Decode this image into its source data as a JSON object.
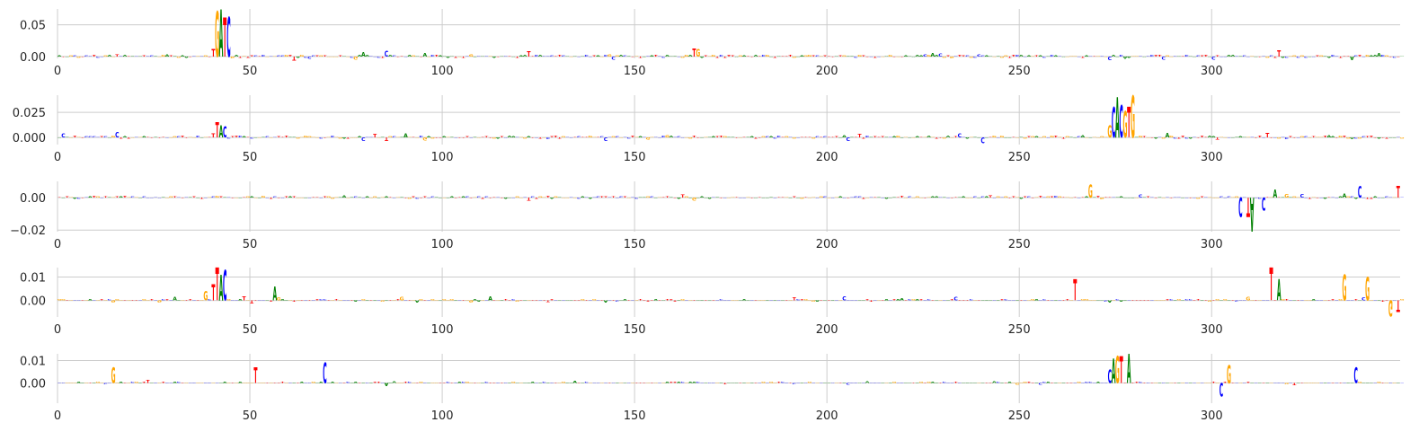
{
  "figure": {
    "colors": {
      "A": "#008000",
      "C": "#0000ff",
      "G": "#ffa500",
      "T": "#ff0000",
      "grid": "#cccccc",
      "tick_text": "#262626"
    }
  },
  "chart_data": [
    {
      "type": "sequence-logo",
      "xlim": [
        0,
        349
      ],
      "ylim": [
        -0.003,
        0.075
      ],
      "x_ticks": [
        0,
        50,
        100,
        150,
        200,
        250,
        300
      ],
      "x_tick_labels": [
        "0",
        "50",
        "100",
        "150",
        "200",
        "250",
        "300"
      ],
      "y_ticks": [
        0.0,
        0.05
      ],
      "y_tick_labels": [
        "0.00",
        "0.05"
      ],
      "grid": true,
      "peaks": [
        {
          "x": 40,
          "letter": "T",
          "value": 0.012
        },
        {
          "x": 41,
          "letter": "G",
          "value": 0.072
        },
        {
          "x": 42,
          "letter": "A",
          "value": 0.075
        },
        {
          "x": 43,
          "letter": "T",
          "value": 0.062
        },
        {
          "x": 44,
          "letter": "C",
          "value": 0.063
        },
        {
          "x": 165,
          "letter": "T",
          "value": 0.013
        },
        {
          "x": 166,
          "letter": "G",
          "value": 0.012
        }
      ]
    },
    {
      "type": "sequence-logo",
      "xlim": [
        0,
        349
      ],
      "ylim": [
        -0.007,
        0.042
      ],
      "x_ticks": [
        0,
        50,
        100,
        150,
        200,
        250,
        300
      ],
      "x_tick_labels": [
        "0",
        "50",
        "100",
        "150",
        "200",
        "250",
        "300"
      ],
      "y_ticks": [
        0.0,
        0.025
      ],
      "y_tick_labels": [
        "0.000",
        "0.025"
      ],
      "grid": true,
      "peaks": [
        {
          "x": 40,
          "letter": "T",
          "value": 0.004
        },
        {
          "x": 41,
          "letter": "T",
          "value": 0.015
        },
        {
          "x": 42,
          "letter": "A",
          "value": 0.012
        },
        {
          "x": 43,
          "letter": "C",
          "value": 0.011
        },
        {
          "x": 273,
          "letter": "G",
          "value": 0.012
        },
        {
          "x": 274,
          "letter": "C",
          "value": 0.03
        },
        {
          "x": 275,
          "letter": "A",
          "value": 0.04
        },
        {
          "x": 276,
          "letter": "C",
          "value": 0.032
        },
        {
          "x": 277,
          "letter": "G",
          "value": 0.026
        },
        {
          "x": 278,
          "letter": "T",
          "value": 0.03
        },
        {
          "x": 279,
          "letter": "G",
          "value": 0.042
        },
        {
          "x": 240,
          "letter": "C",
          "value": -0.006
        }
      ]
    },
    {
      "type": "sequence-logo",
      "xlim": [
        0,
        349
      ],
      "ylim": [
        -0.021,
        0.01
      ],
      "x_ticks": [
        0,
        50,
        100,
        150,
        200,
        250,
        300
      ],
      "x_tick_labels": [
        "0",
        "50",
        "100",
        "150",
        "200",
        "250",
        "300"
      ],
      "y_ticks": [
        -0.02,
        0.0
      ],
      "y_tick_labels": [
        "−0.02",
        "0.00"
      ],
      "grid": true,
      "peaks": [
        {
          "x": 268,
          "letter": "G",
          "value": 0.008
        },
        {
          "x": 307,
          "letter": "C",
          "value": -0.012
        },
        {
          "x": 309,
          "letter": "T",
          "value": -0.012
        },
        {
          "x": 310,
          "letter": "A",
          "value": -0.021
        },
        {
          "x": 313,
          "letter": "C",
          "value": -0.008
        },
        {
          "x": 316,
          "letter": "A",
          "value": 0.005
        },
        {
          "x": 338,
          "letter": "C",
          "value": 0.007
        },
        {
          "x": 348,
          "letter": "T",
          "value": 0.007
        }
      ]
    },
    {
      "type": "sequence-logo",
      "xlim": [
        0,
        349
      ],
      "ylim": [
        -0.007,
        0.014
      ],
      "x_ticks": [
        0,
        50,
        100,
        150,
        200,
        250,
        300
      ],
      "x_tick_labels": [
        "0",
        "50",
        "100",
        "150",
        "200",
        "250",
        "300"
      ],
      "y_ticks": [
        0.0,
        0.01
      ],
      "y_tick_labels": [
        "0.00",
        "0.01"
      ],
      "grid": true,
      "peaks": [
        {
          "x": 38,
          "letter": "G",
          "value": 0.004
        },
        {
          "x": 40,
          "letter": "T",
          "value": 0.007
        },
        {
          "x": 41,
          "letter": "T",
          "value": 0.014
        },
        {
          "x": 42,
          "letter": "A",
          "value": 0.011
        },
        {
          "x": 43,
          "letter": "C",
          "value": 0.013
        },
        {
          "x": 56,
          "letter": "A",
          "value": 0.006
        },
        {
          "x": 264,
          "letter": "T",
          "value": 0.009
        },
        {
          "x": 315,
          "letter": "T",
          "value": 0.014
        },
        {
          "x": 317,
          "letter": "A",
          "value": 0.009
        },
        {
          "x": 334,
          "letter": "G",
          "value": 0.011
        },
        {
          "x": 340,
          "letter": "G",
          "value": 0.01
        },
        {
          "x": 346,
          "letter": "G",
          "value": -0.007
        },
        {
          "x": 348,
          "letter": "T",
          "value": -0.005
        }
      ]
    },
    {
      "type": "sequence-logo",
      "xlim": [
        0,
        349
      ],
      "ylim": [
        -0.009,
        0.013
      ],
      "x_ticks": [
        0,
        50,
        100,
        150,
        200,
        250,
        300
      ],
      "x_tick_labels": [
        "0",
        "50",
        "100",
        "150",
        "200",
        "250",
        "300"
      ],
      "y_ticks": [
        0.0,
        0.01
      ],
      "y_tick_labels": [
        "0.00",
        "0.01"
      ],
      "grid": true,
      "peaks": [
        {
          "x": 14,
          "letter": "G",
          "value": 0.007
        },
        {
          "x": 51,
          "letter": "T",
          "value": 0.007
        },
        {
          "x": 69,
          "letter": "C",
          "value": 0.009
        },
        {
          "x": 273,
          "letter": "C",
          "value": 0.006
        },
        {
          "x": 274,
          "letter": "A",
          "value": 0.011
        },
        {
          "x": 275,
          "letter": "G",
          "value": 0.012
        },
        {
          "x": 276,
          "letter": "T",
          "value": 0.012
        },
        {
          "x": 278,
          "letter": "A",
          "value": 0.013
        },
        {
          "x": 302,
          "letter": "C",
          "value": -0.006
        },
        {
          "x": 304,
          "letter": "G",
          "value": 0.008
        },
        {
          "x": 337,
          "letter": "C",
          "value": 0.007
        }
      ]
    }
  ]
}
